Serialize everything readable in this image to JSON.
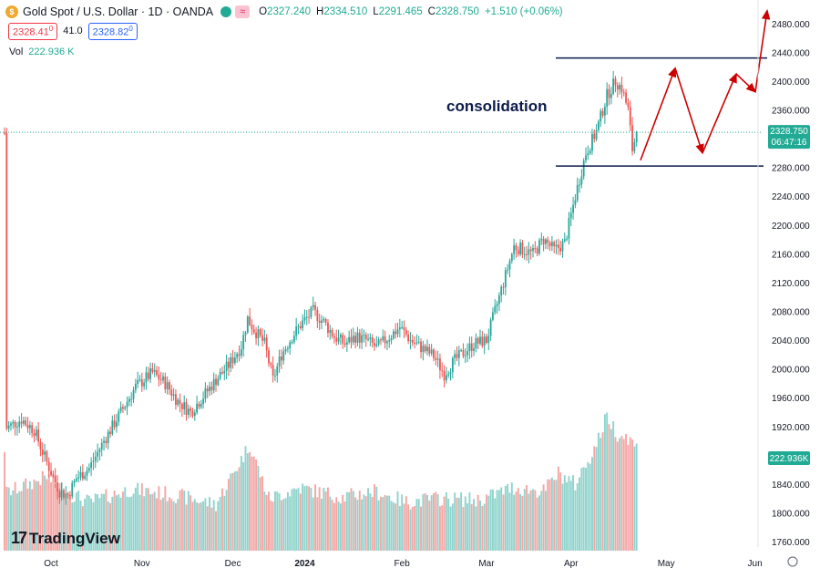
{
  "header": {
    "symbol_title": "Gold Spot / U.S. Dollar · 1D · OANDA",
    "open_label": "O",
    "open": "2327.240",
    "high_label": "H",
    "high": "2334.510",
    "low_label": "L",
    "low": "2291.465",
    "close_label": "C",
    "close": "2328.750",
    "change": "+1.510 (+0.06%)",
    "sell_price": "2328.41",
    "sell_sup": "0",
    "spread": "41.0",
    "buy_price": "2328.82",
    "buy_sup": "0",
    "volume_label": "Vol",
    "volume_value": "222.936 K"
  },
  "branding": {
    "logo_text": "TradingView"
  },
  "colors": {
    "up": "#26a69a",
    "down": "#ef5350",
    "vol_up": "#8fd3cc",
    "vol_down": "#f4a6a4",
    "annotation_line": "#0d1b4a",
    "arrow": "#cc0000",
    "price_tag": "#22ab94"
  },
  "chart_data": {
    "type": "candlestick",
    "title": "Gold Spot / U.S. Dollar · 1D · OANDA",
    "annotation_text": "consolidation",
    "current_price_label": "2328.750",
    "countdown_label": "06:47:16",
    "volume_price_label": "222.936K",
    "y_ticks": [
      "2480.000",
      "2440.000",
      "2400.000",
      "2360.000",
      "2320.000",
      "2280.000",
      "2240.000",
      "2200.000",
      "2160.000",
      "2120.000",
      "2080.000",
      "2040.000",
      "2000.000",
      "1960.000",
      "1920.000",
      "1880.000",
      "1840.000",
      "1800.000",
      "1760.000"
    ],
    "x_ticks": [
      "Oct",
      "Nov",
      "Dec",
      "2024",
      "Feb",
      "Mar",
      "Apr",
      "May",
      "Jun"
    ],
    "ylim": [
      1750,
      2500
    ],
    "consolidation_range": [
      2282,
      2432
    ],
    "projection_path": [
      2290,
      2418,
      2300,
      2410,
      2385,
      2498
    ],
    "price_path": [
      [
        1,
        1918
      ],
      [
        8,
        1930
      ],
      [
        14,
        1915
      ],
      [
        20,
        1870
      ],
      [
        26,
        1830
      ],
      [
        30,
        1825
      ],
      [
        34,
        1848
      ],
      [
        40,
        1862
      ],
      [
        47,
        1900
      ],
      [
        55,
        1940
      ],
      [
        62,
        1975
      ],
      [
        70,
        1995
      ],
      [
        76,
        1980
      ],
      [
        82,
        1955
      ],
      [
        88,
        1940
      ],
      [
        94,
        1962
      ],
      [
        100,
        1985
      ],
      [
        106,
        2005
      ],
      [
        112,
        2032
      ],
      [
        115,
        2070
      ],
      [
        118,
        2055
      ],
      [
        123,
        2035
      ],
      [
        127,
        1985
      ],
      [
        131,
        2020
      ],
      [
        136,
        2045
      ],
      [
        141,
        2065
      ],
      [
        146,
        2080
      ],
      [
        151,
        2065
      ],
      [
        156,
        2045
      ],
      [
        161,
        2035
      ],
      [
        166,
        2045
      ],
      [
        171,
        2040
      ],
      [
        176,
        2030
      ],
      [
        181,
        2042
      ],
      [
        187,
        2058
      ],
      [
        192,
        2040
      ],
      [
        197,
        2030
      ],
      [
        203,
        2018
      ],
      [
        208,
        1993
      ],
      [
        213,
        2012
      ],
      [
        218,
        2025
      ],
      [
        222,
        2035
      ],
      [
        228,
        2040
      ],
      [
        233,
        2090
      ],
      [
        237,
        2130
      ],
      [
        241,
        2170
      ],
      [
        246,
        2165
      ],
      [
        250,
        2160
      ],
      [
        255,
        2180
      ],
      [
        260,
        2165
      ],
      [
        265,
        2175
      ],
      [
        270,
        2240
      ],
      [
        275,
        2300
      ],
      [
        280,
        2330
      ],
      [
        285,
        2380
      ],
      [
        289,
        2400
      ],
      [
        292,
        2390
      ],
      [
        295,
        2360
      ],
      [
        297,
        2305
      ],
      [
        299,
        2328
      ]
    ],
    "volume_path": [
      [
        1,
        1828
      ],
      [
        20,
        1850
      ],
      [
        30,
        1828
      ],
      [
        40,
        1815
      ],
      [
        60,
        1833
      ],
      [
        80,
        1825
      ],
      [
        100,
        1812
      ],
      [
        116,
        1895
      ],
      [
        125,
        1820
      ],
      [
        140,
        1835
      ],
      [
        160,
        1822
      ],
      [
        175,
        1830
      ],
      [
        190,
        1815
      ],
      [
        205,
        1820
      ],
      [
        225,
        1818
      ],
      [
        240,
        1835
      ],
      [
        255,
        1830
      ],
      [
        262,
        1855
      ],
      [
        270,
        1840
      ],
      [
        280,
        1895
      ],
      [
        285,
        1935
      ],
      [
        290,
        1910
      ],
      [
        295,
        1905
      ],
      [
        299,
        1890
      ]
    ]
  }
}
